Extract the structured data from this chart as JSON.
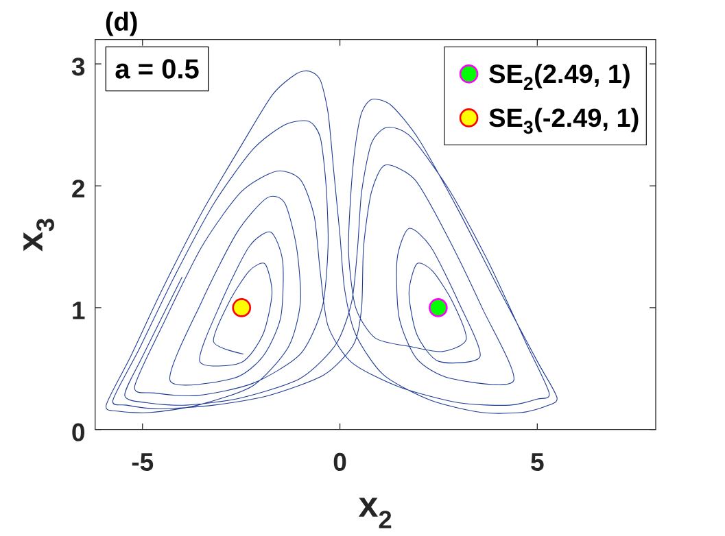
{
  "chart_data": {
    "type": "line",
    "annotations": [
      "(d)",
      "a = 0.5"
    ],
    "xlabel": "x$_{2}$",
    "ylabel": "x$_{3}$",
    "xlim": [
      -6.2,
      8
    ],
    "ylim": [
      0,
      3.2
    ],
    "xticks": [
      -5,
      0,
      5
    ],
    "yticks": [
      0,
      1,
      2,
      3
    ],
    "legend": "top right",
    "series": [
      {
        "color": "#1f3b96",
        "x": [
          -2.45,
          -3.2,
          -2.8,
          -2.3,
          -1.9,
          -1.72,
          -1.95,
          -2.5,
          -3.55,
          -3.0,
          -2.3,
          -1.75,
          -1.45,
          -1.5,
          -1.95,
          -2.7,
          -4.3,
          -3.5,
          -2.6,
          -1.85,
          -1.4,
          -1.1,
          -1.0,
          -1.3,
          -2.2,
          -3.6,
          -4.8,
          -5.6,
          -5.92,
          -5.3,
          -4.5,
          -3.5,
          -2.5,
          -1.7,
          -1.1,
          -0.77,
          -0.5,
          -0.3,
          -0.15,
          0.0,
          0.12,
          0.4,
          1.1,
          2.3,
          3.6,
          4.6,
          5.2,
          5.5,
          5.0,
          4.0,
          3.0,
          2.0,
          1.3,
          0.82,
          0.55,
          0.38,
          0.27,
          0.22,
          0.4,
          0.9,
          1.8,
          2.6,
          3.2,
          2.85,
          2.35,
          1.95,
          1.75,
          1.95,
          2.5,
          3.55,
          3.0,
          2.3,
          1.75,
          1.45,
          1.5,
          1.95,
          2.8,
          4.4,
          3.6,
          2.7,
          1.9,
          1.15,
          0.8,
          0.6,
          0.55,
          0.35,
          -0.4,
          -1.8,
          -3.2,
          -4.6,
          -5.4,
          -5.75,
          -5.1,
          -4.2,
          -3.2,
          -2.2,
          -1.4,
          -0.8,
          -0.5,
          -0.35,
          -0.3,
          -0.45,
          -1.0,
          -2.2,
          -3.6,
          -4.7,
          -5.2,
          -4.5,
          -3.5,
          -2.5,
          -1.6,
          -1.0,
          -0.65,
          -0.5,
          -0.3,
          0.3,
          1.5,
          3.0,
          4.3,
          5.0,
          5.3,
          4.7,
          3.8,
          2.8,
          1.8,
          1.2,
          0.8,
          0.55,
          0.45,
          0.3,
          -0.1,
          -1.0,
          -2.5,
          -3.9,
          -4.9,
          -5.45,
          -5.0,
          -4.0
        ],
        "values": [
          0.62,
          0.72,
          1.05,
          1.3,
          1.36,
          1.12,
          0.78,
          0.55,
          0.56,
          1.05,
          1.5,
          1.62,
          1.38,
          0.92,
          0.6,
          0.42,
          0.4,
          1.05,
          1.62,
          1.9,
          1.86,
          1.5,
          1.05,
          0.68,
          0.36,
          0.2,
          0.14,
          0.15,
          0.2,
          0.6,
          1.15,
          1.78,
          2.33,
          2.75,
          2.92,
          2.94,
          2.87,
          2.6,
          2.1,
          1.6,
          1.15,
          0.78,
          0.45,
          0.24,
          0.14,
          0.14,
          0.19,
          0.26,
          0.56,
          1.17,
          1.8,
          2.38,
          2.66,
          2.71,
          2.6,
          2.3,
          1.9,
          1.45,
          1.0,
          0.75,
          0.68,
          0.64,
          0.74,
          1.05,
          1.3,
          1.36,
          1.12,
          0.78,
          0.56,
          0.6,
          1.05,
          1.5,
          1.65,
          1.4,
          0.92,
          0.58,
          0.42,
          0.4,
          1.0,
          1.6,
          2.05,
          2.17,
          1.95,
          1.5,
          1.0,
          0.7,
          0.45,
          0.28,
          0.2,
          0.17,
          0.2,
          0.24,
          0.65,
          1.25,
          1.85,
          2.3,
          2.5,
          2.53,
          2.4,
          2.0,
          1.5,
          1.0,
          0.62,
          0.38,
          0.28,
          0.3,
          0.35,
          0.85,
          1.5,
          1.95,
          2.12,
          2.05,
          1.75,
          1.3,
          0.85,
          0.55,
          0.35,
          0.22,
          0.2,
          0.25,
          0.3,
          0.72,
          1.35,
          1.95,
          2.4,
          2.48,
          2.35,
          1.95,
          1.5,
          1.05,
          0.7,
          0.42,
          0.26,
          0.2,
          0.22,
          0.28,
          0.6,
          1.25
        ]
      },
      {
        "name": "SE$_{2}$(2.49, 1)",
        "type": "scatter",
        "marker": "circle",
        "color": "#00ff00",
        "x": [
          2.49
        ],
        "values": [
          1
        ]
      },
      {
        "name": "SE$_{3}$(-2.49, 1)",
        "type": "scatter",
        "marker": "circle",
        "color": "#ffff00",
        "x": [
          -2.49
        ],
        "values": [
          1
        ]
      }
    ]
  }
}
